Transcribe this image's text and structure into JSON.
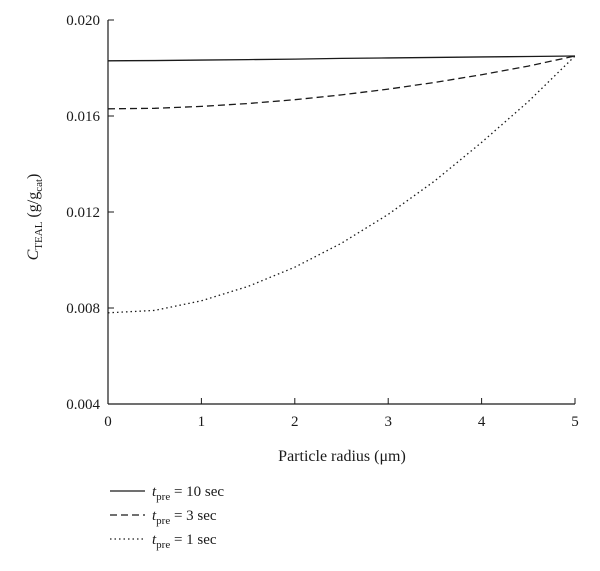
{
  "chart_data": {
    "type": "line",
    "title": "",
    "xlabel": "Particle radius (μm)",
    "ylabel": {
      "symbol": "C",
      "symbol_sub": "TEAL",
      "unit_open": " (g/g",
      "unit_sub": "cat",
      "unit_close": ")"
    },
    "xlim": [
      0,
      5
    ],
    "ylim": [
      0.004,
      0.02
    ],
    "x_ticks": [
      "0",
      "1",
      "2",
      "3",
      "4",
      "5"
    ],
    "y_ticks": [
      "0.004",
      "0.008",
      "0.012",
      "0.016",
      "0.020"
    ],
    "grid": false,
    "legend_position": "bottom-left, below plot",
    "x": [
      0,
      0.5,
      1,
      1.5,
      2,
      2.5,
      3,
      3.5,
      4,
      4.5,
      5
    ],
    "series": [
      {
        "name": "t_pre = 10 sec",
        "legend": {
          "symbol": "t",
          "sub": "pre",
          "text": " = 10 sec"
        },
        "dash": "solid",
        "values": [
          0.0183,
          0.01831,
          0.01833,
          0.01835,
          0.01837,
          0.0184,
          0.01842,
          0.01844,
          0.01846,
          0.01848,
          0.0185
        ]
      },
      {
        "name": "t_pre = 3 sec",
        "legend": {
          "symbol": "t",
          "sub": "pre",
          "text": " = 3 sec"
        },
        "dash": "dashed",
        "values": [
          0.0163,
          0.01632,
          0.0164,
          0.01652,
          0.01668,
          0.01688,
          0.01712,
          0.0174,
          0.01772,
          0.01808,
          0.0185
        ]
      },
      {
        "name": "t_pre = 1 sec",
        "legend": {
          "symbol": "t",
          "sub": "pre",
          "text": " = 1 sec"
        },
        "dash": "dotted",
        "values": [
          0.0078,
          0.0079,
          0.0083,
          0.0089,
          0.0097,
          0.0107,
          0.0119,
          0.0133,
          0.0149,
          0.0166,
          0.0185
        ]
      }
    ]
  }
}
